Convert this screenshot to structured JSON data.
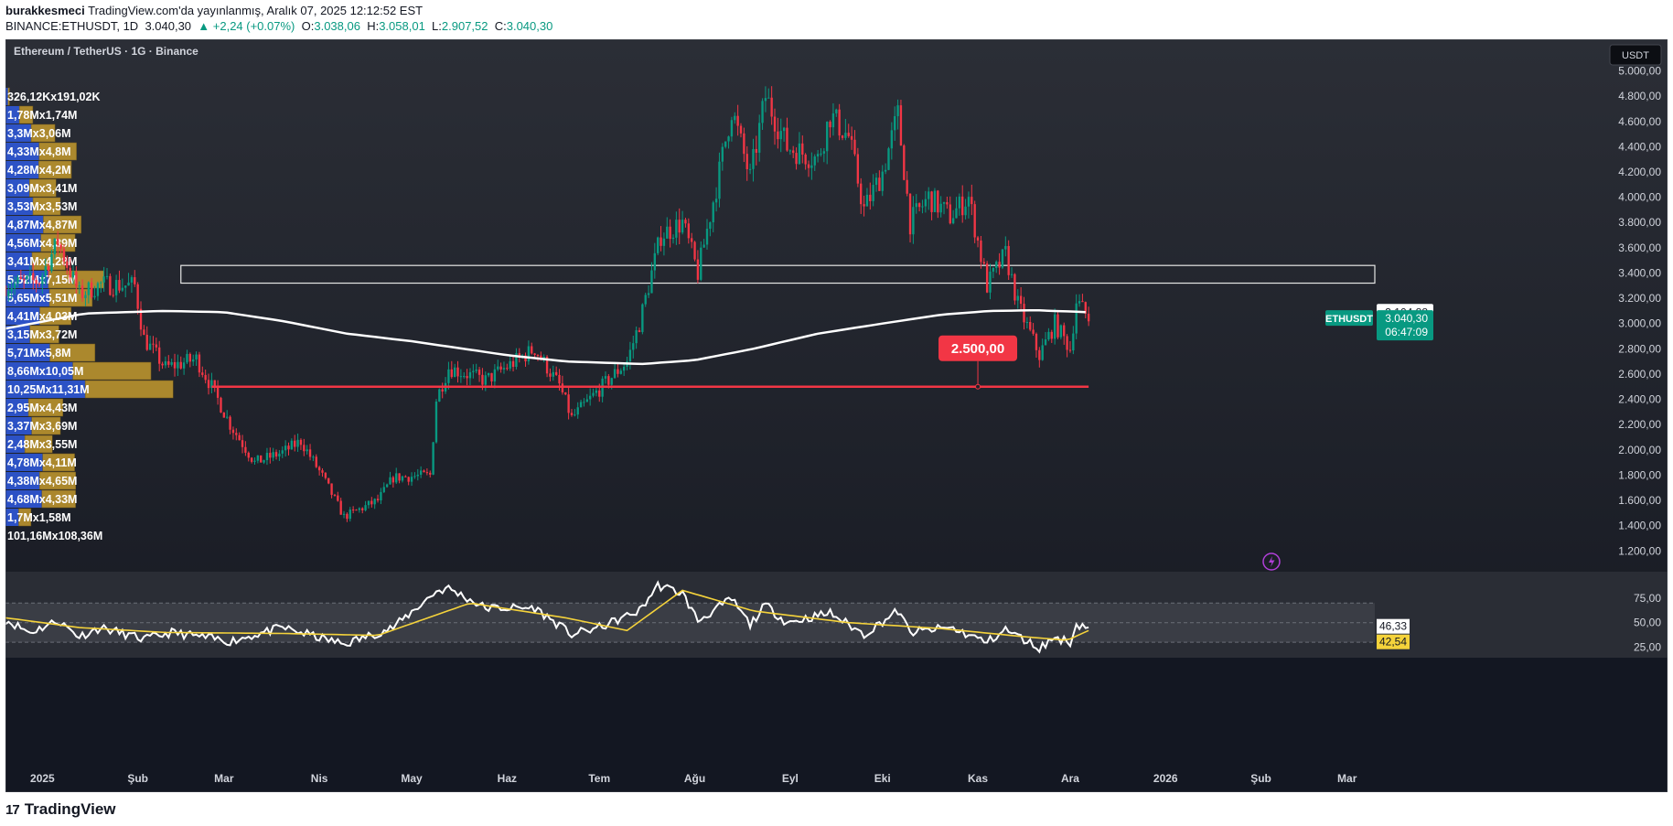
{
  "header": {
    "author": "burakkesmeci",
    "published": "TradingView.com'da yayınlanmış, Aralık 07, 2025 12:12:52 EST",
    "symbol_line": "BINANCE:ETHUSDT, 1D",
    "last": "3.040,30",
    "change": "▲ +2,24 (+0.07%)",
    "o_label": "O:",
    "o": "3.038,06",
    "h_label": "H:",
    "h": "3.058,01",
    "l_label": "L:",
    "l": "2.907,52",
    "c_label": "C:",
    "c": "3.040,30"
  },
  "chart_title": "Ethereum / TetherUS · 1G · Binance",
  "currency_button": "USDT",
  "footer_brand": "TradingView",
  "colors": {
    "up": "#089981",
    "down": "#f23645",
    "bg_top": "#24272f",
    "bg_bottom": "#131722",
    "ma": "#ffffff",
    "support": "#f23645",
    "vp_buy": "#2f5be0",
    "vp_sell": "#c49a2e",
    "rsi": "#ffffff",
    "rsi_ma": "#f5d33b"
  },
  "chart_data": [
    {
      "type": "candlestick",
      "symbol": "ETHUSDT",
      "timeframe": "1D",
      "y_ticks": [
        "1.200,00",
        "1.400,00",
        "1.600,00",
        "1.800,00",
        "2.000,00",
        "2.200,00",
        "2.400,00",
        "2.600,00",
        "2.800,00",
        "3.000,00",
        "3.200,00",
        "3.400,00",
        "3.600,00",
        "3.800,00",
        "4.000,00",
        "4.200,00",
        "4.400,00",
        "4.600,00",
        "4.800,00",
        "5.000,00"
      ],
      "y_tick_values": [
        1200,
        1400,
        1600,
        1800,
        2000,
        2200,
        2400,
        2600,
        2800,
        3000,
        3200,
        3400,
        3600,
        3800,
        4000,
        4200,
        4400,
        4600,
        4800,
        5000
      ],
      "ylim": [
        1050,
        5250
      ],
      "x_ticks": [
        {
          "label": "2025",
          "date": "2025-01-01"
        },
        {
          "label": "Şub",
          "date": "2025-02-01"
        },
        {
          "label": "Mar",
          "date": "2025-03-01"
        },
        {
          "label": "Nis",
          "date": "2025-04-01"
        },
        {
          "label": "May",
          "date": "2025-05-01"
        },
        {
          "label": "Haz",
          "date": "2025-06-01"
        },
        {
          "label": "Tem",
          "date": "2025-07-01"
        },
        {
          "label": "Ağu",
          "date": "2025-08-01"
        },
        {
          "label": "Eyl",
          "date": "2025-09-01"
        },
        {
          "label": "Eki",
          "date": "2025-10-01"
        },
        {
          "label": "Kas",
          "date": "2025-11-01"
        },
        {
          "label": "Ara",
          "date": "2025-12-01"
        },
        {
          "label": "2026",
          "date": "2026-01-01"
        },
        {
          "label": "Şub",
          "date": "2026-02-01"
        },
        {
          "label": "Mar",
          "date": "2026-03-01"
        }
      ],
      "xlim": [
        "2024-12-20",
        "2026-03-10"
      ],
      "close_anchors": [
        [
          "2024-12-20",
          3300
        ],
        [
          "2024-12-31",
          3340
        ],
        [
          "2025-01-06",
          3650
        ],
        [
          "2025-01-13",
          3230
        ],
        [
          "2025-01-20",
          3310
        ],
        [
          "2025-01-31",
          3300
        ],
        [
          "2025-02-03",
          2880
        ],
        [
          "2025-02-10",
          2650
        ],
        [
          "2025-02-20",
          2720
        ],
        [
          "2025-02-25",
          2500
        ],
        [
          "2025-03-03",
          2200
        ],
        [
          "2025-03-11",
          1900
        ],
        [
          "2025-03-20",
          1980
        ],
        [
          "2025-03-26",
          2070
        ],
        [
          "2025-04-02",
          1790
        ],
        [
          "2025-04-09",
          1470
        ],
        [
          "2025-04-20",
          1600
        ],
        [
          "2025-04-25",
          1780
        ],
        [
          "2025-05-07",
          1800
        ],
        [
          "2025-05-09",
          2400
        ],
        [
          "2025-05-13",
          2650
        ],
        [
          "2025-05-25",
          2550
        ],
        [
          "2025-06-10",
          2800
        ],
        [
          "2025-06-18",
          2510
        ],
        [
          "2025-06-22",
          2250
        ],
        [
          "2025-07-01",
          2480
        ],
        [
          "2025-07-10",
          2700
        ],
        [
          "2025-07-14",
          3000
        ],
        [
          "2025-07-21",
          3700
        ],
        [
          "2025-07-28",
          3800
        ],
        [
          "2025-08-02",
          3400
        ],
        [
          "2025-08-09",
          4200
        ],
        [
          "2025-08-13",
          4700
        ],
        [
          "2025-08-19",
          4150
        ],
        [
          "2025-08-24",
          4800
        ],
        [
          "2025-08-31",
          4400
        ],
        [
          "2025-09-10",
          4300
        ],
        [
          "2025-09-14",
          4650
        ],
        [
          "2025-09-20",
          4480
        ],
        [
          "2025-09-25",
          3900
        ],
        [
          "2025-10-01",
          4200
        ],
        [
          "2025-10-06",
          4650
        ],
        [
          "2025-10-10",
          3800
        ],
        [
          "2025-10-16",
          4000
        ],
        [
          "2025-10-23",
          3850
        ],
        [
          "2025-10-29",
          4000
        ],
        [
          "2025-11-04",
          3300
        ],
        [
          "2025-11-10",
          3550
        ],
        [
          "2025-11-14",
          3150
        ],
        [
          "2025-11-21",
          2750
        ],
        [
          "2025-11-26",
          3000
        ],
        [
          "2025-12-01",
          2800
        ],
        [
          "2025-12-03",
          3180
        ],
        [
          "2025-12-07",
          3040
        ]
      ],
      "last_price": 3040.3,
      "last_price_label": "3.040,30",
      "symbol_badge": "ETHUSDT",
      "countdown": "06:47:09",
      "moving_average": {
        "label_value": "3.104,88",
        "points": [
          [
            "2024-12-20",
            2960
          ],
          [
            "2025-01-15",
            3080
          ],
          [
            "2025-02-10",
            3100
          ],
          [
            "2025-03-01",
            3090
          ],
          [
            "2025-03-20",
            3020
          ],
          [
            "2025-04-10",
            2920
          ],
          [
            "2025-05-01",
            2860
          ],
          [
            "2025-06-01",
            2750
          ],
          [
            "2025-06-20",
            2700
          ],
          [
            "2025-07-15",
            2680
          ],
          [
            "2025-08-01",
            2710
          ],
          [
            "2025-08-20",
            2800
          ],
          [
            "2025-09-10",
            2920
          ],
          [
            "2025-10-01",
            3000
          ],
          [
            "2025-10-20",
            3070
          ],
          [
            "2025-11-05",
            3100
          ],
          [
            "2025-11-20",
            3105
          ],
          [
            "2025-12-07",
            3090
          ]
        ]
      },
      "rectangle": {
        "from": "2025-02-15",
        "to": "2026-03-10",
        "low": 3320,
        "high": 3460
      },
      "support_line": {
        "price": 2500,
        "from": "2025-02-25",
        "to": "2025-12-07",
        "label": "2.500,00",
        "label_date": "2025-11-01"
      }
    },
    {
      "type": "bar",
      "name": "volume-profile",
      "rows": [
        {
          "label": "326,12Kx191,02K",
          "buy": 0.33,
          "sell": 0.19,
          "price": 5000
        },
        {
          "label": "1,78Mx1,74M",
          "buy": 1.78,
          "sell": 1.74,
          "price": 4850
        },
        {
          "label": "3,3Mx3,06M",
          "buy": 3.3,
          "sell": 3.06,
          "price": 4700
        },
        {
          "label": "4,33Mx4,8M",
          "buy": 4.33,
          "sell": 4.8,
          "price": 4550
        },
        {
          "label": "4,28Mx4,2M",
          "buy": 4.28,
          "sell": 4.2,
          "price": 4400
        },
        {
          "label": "3,09Mx3,41M",
          "buy": 3.09,
          "sell": 3.41,
          "price": 4250
        },
        {
          "label": "3,53Mx3,53M",
          "buy": 3.53,
          "sell": 3.53,
          "price": 4100
        },
        {
          "label": "4,87Mx4,87M",
          "buy": 4.87,
          "sell": 4.87,
          "price": 3950
        },
        {
          "label": "4,56Mx4,39M",
          "buy": 4.56,
          "sell": 4.39,
          "price": 3800
        },
        {
          "label": "3,41Mx4,28M",
          "buy": 3.41,
          "sell": 4.28,
          "price": 3650
        },
        {
          "label": "5,52Mx7,15M",
          "buy": 5.52,
          "sell": 7.15,
          "price": 3500
        },
        {
          "label": "5,65Mx5,51M",
          "buy": 5.65,
          "sell": 5.51,
          "price": 3350
        },
        {
          "label": "4,41Mx4,03M",
          "buy": 4.41,
          "sell": 4.03,
          "price": 3200
        },
        {
          "label": "3,15Mx3,72M",
          "buy": 3.15,
          "sell": 3.72,
          "price": 3050
        },
        {
          "label": "5,71Mx5,8M",
          "buy": 5.71,
          "sell": 5.8,
          "price": 2900
        },
        {
          "label": "8,66Mx10,05M",
          "buy": 8.66,
          "sell": 10.05,
          "price": 2750
        },
        {
          "label": "10,25Mx11,31M",
          "buy": 10.25,
          "sell": 11.31,
          "price": 2600
        },
        {
          "label": "2,95Mx4,43M",
          "buy": 2.95,
          "sell": 4.43,
          "price": 2450
        },
        {
          "label": "3,37Mx3,69M",
          "buy": 3.37,
          "sell": 3.69,
          "price": 2300
        },
        {
          "label": "2,48Mx3,55M",
          "buy": 2.48,
          "sell": 3.55,
          "price": 2150
        },
        {
          "label": "4,78Mx4,11M",
          "buy": 4.78,
          "sell": 4.11,
          "price": 2000
        },
        {
          "label": "4,38Mx4,65M",
          "buy": 4.38,
          "sell": 4.65,
          "price": 1850
        },
        {
          "label": "4,68Mx4,33M",
          "buy": 4.68,
          "sell": 4.33,
          "price": 1700
        },
        {
          "label": "1,7Mx1,58M",
          "buy": 1.7,
          "sell": 1.58,
          "price": 1550
        },
        {
          "label": "101,16Mx108,36M",
          "buy": 0,
          "sell": 0,
          "price": 1400
        }
      ]
    },
    {
      "type": "line",
      "name": "rsi",
      "y_ticks": [
        "25,00",
        "50,00",
        "75,00"
      ],
      "y_tick_values": [
        25,
        50,
        75
      ],
      "ylim": [
        18,
        102
      ],
      "band": [
        30,
        70
      ],
      "rsi_value": "46,33",
      "rsi_ma_value": "42,54",
      "rsi_anchors": [
        [
          "2024-12-20",
          53
        ],
        [
          "2024-12-28",
          40
        ],
        [
          "2025-01-06",
          52
        ],
        [
          "2025-01-13",
          36
        ],
        [
          "2025-01-20",
          45
        ],
        [
          "2025-02-03",
          33
        ],
        [
          "2025-02-12",
          40
        ],
        [
          "2025-03-03",
          31
        ],
        [
          "2025-03-20",
          45
        ],
        [
          "2025-04-09",
          28
        ],
        [
          "2025-04-25",
          45
        ],
        [
          "2025-05-09",
          82
        ],
        [
          "2025-05-13",
          85
        ],
        [
          "2025-05-25",
          65
        ],
        [
          "2025-06-10",
          65
        ],
        [
          "2025-06-22",
          38
        ],
        [
          "2025-07-01",
          45
        ],
        [
          "2025-07-14",
          62
        ],
        [
          "2025-07-20",
          88
        ],
        [
          "2025-07-28",
          80
        ],
        [
          "2025-08-02",
          52
        ],
        [
          "2025-08-13",
          74
        ],
        [
          "2025-08-19",
          48
        ],
        [
          "2025-08-24",
          68
        ],
        [
          "2025-08-31",
          50
        ],
        [
          "2025-09-14",
          60
        ],
        [
          "2025-09-25",
          38
        ],
        [
          "2025-10-06",
          62
        ],
        [
          "2025-10-10",
          40
        ],
        [
          "2025-10-23",
          45
        ],
        [
          "2025-11-04",
          30
        ],
        [
          "2025-11-10",
          43
        ],
        [
          "2025-11-21",
          24
        ],
        [
          "2025-11-26",
          35
        ],
        [
          "2025-12-01",
          30
        ],
        [
          "2025-12-03",
          48
        ],
        [
          "2025-12-07",
          46
        ]
      ],
      "ma_anchors": [
        [
          "2024-12-20",
          55
        ],
        [
          "2025-01-13",
          45
        ],
        [
          "2025-02-10",
          40
        ],
        [
          "2025-03-20",
          39
        ],
        [
          "2025-04-20",
          37
        ],
        [
          "2025-05-20",
          70
        ],
        [
          "2025-06-20",
          55
        ],
        [
          "2025-07-10",
          42
        ],
        [
          "2025-07-28",
          83
        ],
        [
          "2025-08-20",
          62
        ],
        [
          "2025-09-20",
          50
        ],
        [
          "2025-10-20",
          44
        ],
        [
          "2025-11-15",
          36
        ],
        [
          "2025-11-30",
          32
        ],
        [
          "2025-12-07",
          42
        ]
      ]
    }
  ]
}
